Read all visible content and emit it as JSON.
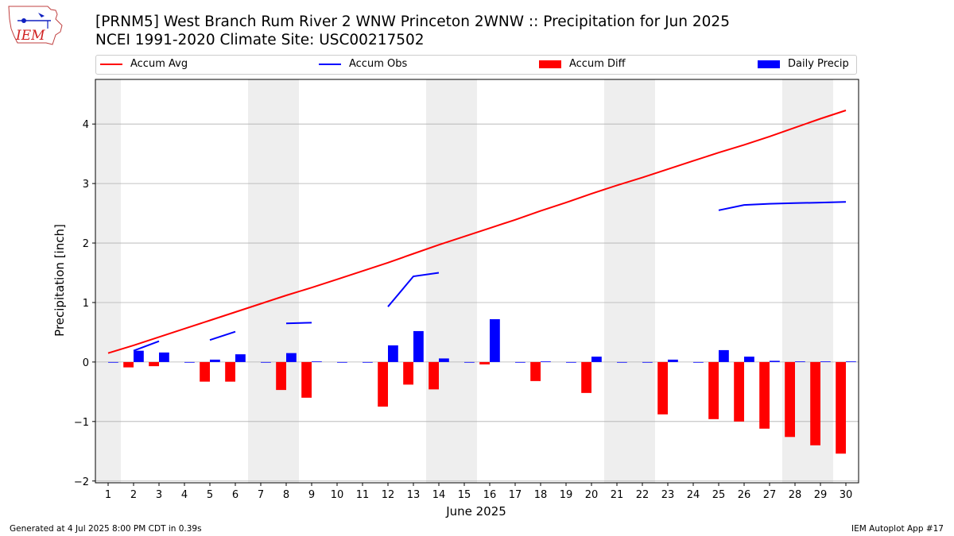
{
  "title_line1": "[PRNM5] West Branch Rum River 2 WNW Princeton 2WNW :: Precipitation for Jun 2025",
  "title_line2": "NCEI 1991-2020 Climate Site: USC00217502",
  "footer_left": "Generated at 4 Jul 2025 8:00 PM CDT in 0.39s",
  "footer_right": "IEM Autoplot App #17",
  "logo_text": "IEM",
  "colors": {
    "accum_avg": "#ff0000",
    "accum_obs": "#0000ff",
    "accum_diff": "#ff0000",
    "daily_precip": "#0000ff",
    "weekend_shade": "#eeeeee",
    "grid": "#b0b0b0"
  },
  "legend": [
    {
      "label": "Accum Avg",
      "kind": "line",
      "color": "#ff0000"
    },
    {
      "label": "Accum Obs",
      "kind": "line",
      "color": "#0000ff"
    },
    {
      "label": "Accum Diff",
      "kind": "box",
      "color": "#ff0000"
    },
    {
      "label": "Daily Precip",
      "kind": "box",
      "color": "#0000ff"
    }
  ],
  "chart_data": {
    "type": "bar",
    "xlabel": "June 2025",
    "ylabel": "Precipitation [inch]",
    "xlim": [
      0.5,
      30.5
    ],
    "ylim": [
      -2.03,
      4.75
    ],
    "yticks": [
      -2,
      -1,
      0,
      1,
      2,
      3,
      4
    ],
    "ytick_labels": [
      "−2",
      "−1",
      "0",
      "1",
      "2",
      "3",
      "4"
    ],
    "grid": "horizontal",
    "legend_position": "top",
    "x": [
      1,
      2,
      3,
      4,
      5,
      6,
      7,
      8,
      9,
      10,
      11,
      12,
      13,
      14,
      15,
      16,
      17,
      18,
      19,
      20,
      21,
      22,
      23,
      24,
      25,
      26,
      27,
      28,
      29,
      30
    ],
    "weekend_days": [
      1,
      7,
      8,
      14,
      15,
      21,
      22,
      28,
      29
    ],
    "series": [
      {
        "name": "Accum Avg",
        "kind": "line",
        "values": [
          0.15,
          0.28,
          0.42,
          0.56,
          0.7,
          0.84,
          0.98,
          1.12,
          1.25,
          1.39,
          1.53,
          1.67,
          1.82,
          1.97,
          2.11,
          2.25,
          2.39,
          2.54,
          2.68,
          2.83,
          2.97,
          3.1,
          3.24,
          3.38,
          3.52,
          3.65,
          3.79,
          3.94,
          4.09,
          4.23
        ]
      },
      {
        "name": "Accum Obs",
        "kind": "line",
        "values": [
          null,
          0.19,
          0.35,
          null,
          0.37,
          0.51,
          null,
          0.65,
          0.66,
          null,
          null,
          0.93,
          1.44,
          1.5,
          null,
          null,
          null,
          null,
          null,
          null,
          null,
          null,
          null,
          null,
          2.55,
          2.64,
          2.66,
          2.67,
          2.68,
          2.69
        ]
      },
      {
        "name": "Accum Diff",
        "kind": "bar",
        "values": [
          null,
          -0.09,
          -0.07,
          null,
          -0.33,
          -0.33,
          null,
          -0.47,
          -0.6,
          null,
          null,
          -0.75,
          -0.38,
          -0.46,
          null,
          -0.04,
          null,
          -0.32,
          null,
          -0.52,
          null,
          null,
          -0.88,
          null,
          -0.96,
          -1.0,
          -1.12,
          -1.26,
          -1.4,
          -1.54
        ]
      },
      {
        "name": "Daily Precip",
        "kind": "bar",
        "values": [
          0,
          0.19,
          0.16,
          0,
          0.04,
          0.13,
          0,
          0.15,
          0.01,
          0,
          0,
          0.28,
          0.52,
          0.06,
          0,
          0.72,
          0,
          0.01,
          0,
          0.09,
          0,
          0,
          0.04,
          0,
          0.2,
          0.09,
          0.02,
          0.01,
          0.01,
          0.01
        ]
      }
    ]
  }
}
